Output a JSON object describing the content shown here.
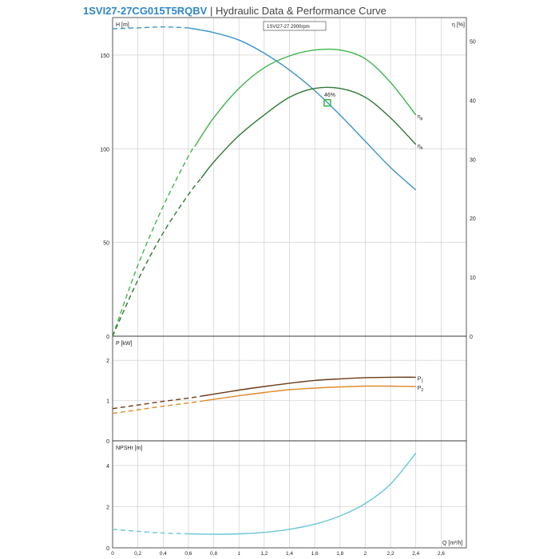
{
  "header": {
    "model": "1SVI27-27CG015T5RQBV",
    "separator": "|",
    "subtitle": "Hydraulic Data & Performance Curve"
  },
  "colors": {
    "head": "#3b94c8",
    "eta_p": "#3cb54a",
    "eta_h": "#2f7a32",
    "p1": "#6b3a17",
    "p2": "#e0892a",
    "npsh": "#67c7d8",
    "grid": "#c9c9c9"
  },
  "chart_data": [
    {
      "type": "line",
      "panel": "head-efficiency",
      "ylabel": "H [m]",
      "y2label": "η [%]",
      "label_box": "1SVI27-27 2900rpm",
      "ylim": [
        0,
        170
      ],
      "y2lim": [
        0,
        54
      ],
      "yticks": [
        0,
        50,
        100,
        150
      ],
      "y2ticks": [
        0,
        10,
        20,
        30,
        40,
        50
      ],
      "duty_point": {
        "x": 1.7,
        "label": "46%"
      },
      "series": [
        {
          "id": "H",
          "axis": "y",
          "color_key": "head",
          "dashed_to": 0.6,
          "x": [
            0,
            0.2,
            0.4,
            0.6,
            0.8,
            1.0,
            1.2,
            1.4,
            1.6,
            1.8,
            2.0,
            2.2,
            2.4
          ],
          "y": [
            164,
            164.5,
            165,
            164.5,
            162,
            158,
            151,
            142,
            131,
            118,
            104,
            90,
            78
          ]
        },
        {
          "id": "ηp",
          "name": "η",
          "name_sub": "p",
          "axis": "y2",
          "color_key": "eta_p",
          "dashed_to": 0.65,
          "x": [
            0,
            0.2,
            0.4,
            0.6,
            0.8,
            1.0,
            1.2,
            1.4,
            1.6,
            1.8,
            2.0,
            2.2,
            2.4
          ],
          "y": [
            0,
            12,
            22,
            30.5,
            37,
            42,
            45.5,
            47.5,
            48.5,
            48.5,
            47,
            43,
            37.5
          ]
        },
        {
          "id": "ηh",
          "name": "η",
          "name_sub": "h",
          "axis": "y2",
          "color_key": "eta_h",
          "dashed_to": 0.7,
          "x": [
            0,
            0.2,
            0.4,
            0.6,
            0.8,
            1.0,
            1.2,
            1.4,
            1.6,
            1.8,
            2.0,
            2.2,
            2.4
          ],
          "y": [
            0,
            9.5,
            17.5,
            24,
            29.5,
            34,
            37.5,
            40.5,
            42,
            42,
            40.5,
            37,
            32.5
          ]
        }
      ]
    },
    {
      "type": "line",
      "panel": "power",
      "ylabel": "P [kW]",
      "ylim": [
        0,
        2.6
      ],
      "yticks": [
        0,
        1,
        2
      ],
      "series": [
        {
          "id": "P1",
          "name": "P",
          "name_sub": "1",
          "color_key": "p1",
          "dashed_to": 0.7,
          "x": [
            0,
            0.2,
            0.4,
            0.6,
            0.8,
            1.0,
            1.2,
            1.4,
            1.6,
            1.8,
            2.0,
            2.2,
            2.4
          ],
          "y": [
            0.8,
            0.89,
            0.98,
            1.06,
            1.16,
            1.26,
            1.35,
            1.43,
            1.5,
            1.54,
            1.57,
            1.58,
            1.58
          ]
        },
        {
          "id": "P2",
          "name": "P",
          "name_sub": "2",
          "color_key": "p2",
          "dashed_to": 0.7,
          "x": [
            0,
            0.2,
            0.4,
            0.6,
            0.8,
            1.0,
            1.2,
            1.4,
            1.6,
            1.8,
            2.0,
            2.2,
            2.4
          ],
          "y": [
            0.68,
            0.77,
            0.86,
            0.94,
            1.03,
            1.12,
            1.2,
            1.27,
            1.31,
            1.34,
            1.36,
            1.36,
            1.35
          ]
        }
      ]
    },
    {
      "type": "line",
      "panel": "npsh",
      "ylabel": "NPSHr [m]",
      "xlabel": "Q [m³/h]",
      "ylim": [
        0,
        5.2
      ],
      "yticks": [
        0,
        2,
        4
      ],
      "xlim": [
        0,
        2.8
      ],
      "xticks": [
        "0",
        "0,2",
        "0,4",
        "0,6",
        "0,8",
        "1",
        "1,2",
        "1,4",
        "1,6",
        "1,8",
        "2",
        "2,2",
        "2,4",
        "2,6"
      ],
      "series": [
        {
          "id": "NPSHr",
          "color_key": "npsh",
          "dashed_to": 0.6,
          "x": [
            0,
            0.2,
            0.4,
            0.6,
            0.8,
            1.0,
            1.2,
            1.4,
            1.6,
            1.8,
            2.0,
            2.2,
            2.4
          ],
          "y": [
            0.9,
            0.8,
            0.72,
            0.68,
            0.66,
            0.68,
            0.75,
            0.9,
            1.15,
            1.55,
            2.15,
            3.1,
            4.6
          ]
        }
      ]
    }
  ]
}
